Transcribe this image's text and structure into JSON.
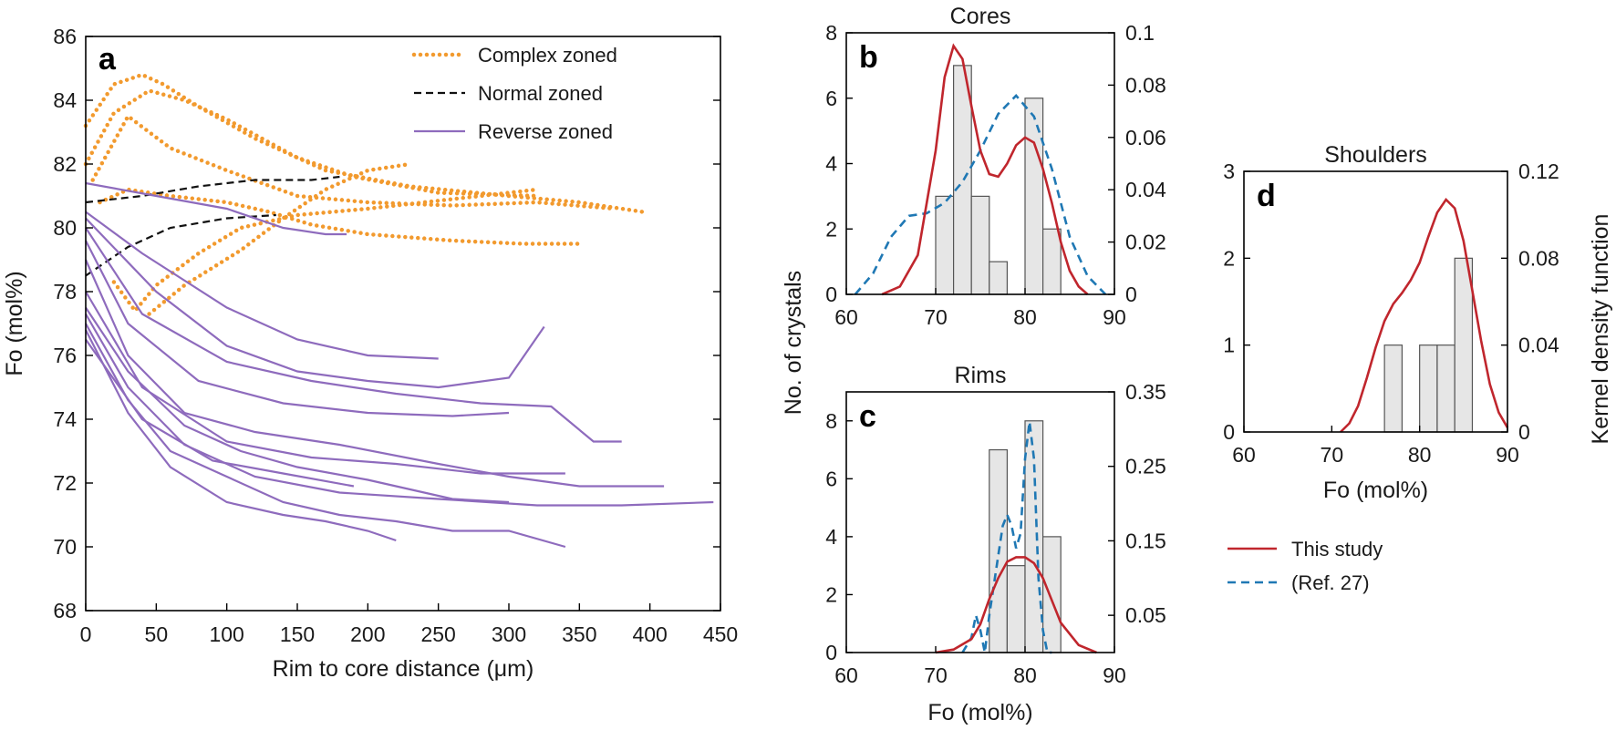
{
  "figure_panels": [
    "a",
    "b",
    "c",
    "d"
  ],
  "legend_a": {
    "complex": "Complex zoned",
    "normal": "Normal zoned",
    "reverse": "Reverse zoned"
  },
  "legend_kde": {
    "this_study": "This study",
    "ref": "(Ref. 27)"
  },
  "colors": {
    "complex": "#f29a2e",
    "normal": "#111111",
    "reverse": "#8e6bbd",
    "this_study": "#c0262d",
    "ref": "#1f78b4",
    "bar_fill": "#e6e6e6",
    "bar_stroke": "#555555"
  },
  "chart_data": [
    {
      "panel": "a",
      "type": "line",
      "title": "",
      "xlabel": "Rim to core distance (μm)",
      "ylabel": "Fo (mol%)",
      "xlim": [
        0,
        450
      ],
      "ylim": [
        68,
        86
      ],
      "xticks": [
        "0",
        "50",
        "100",
        "150",
        "200",
        "250",
        "300",
        "350",
        "400",
        "450"
      ],
      "yticks": [
        "68",
        "70",
        "72",
        "74",
        "76",
        "78",
        "80",
        "82",
        "84",
        "86"
      ],
      "series": [
        {
          "name": "Complex zoned",
          "style": "dotted",
          "x": [
            0,
            20,
            40,
            55,
            80,
            120,
            170,
            230,
            300,
            350,
            395
          ],
          "y": [
            83.2,
            84.5,
            84.8,
            84.5,
            83.8,
            82.8,
            81.8,
            81.3,
            81.0,
            80.8,
            80.5
          ]
        },
        {
          "name": "Complex zoned",
          "style": "dotted",
          "x": [
            0,
            20,
            45,
            70,
            100,
            150,
            190,
            250,
            320
          ],
          "y": [
            82.0,
            83.6,
            84.3,
            84.0,
            83.4,
            82.2,
            81.6,
            81.1,
            81.0
          ]
        },
        {
          "name": "Complex zoned",
          "style": "dotted",
          "x": [
            5,
            30,
            60,
            100,
            150,
            200,
            260,
            320,
            375
          ],
          "y": [
            81.5,
            83.5,
            82.5,
            81.8,
            81.0,
            80.8,
            80.7,
            80.8,
            80.6
          ]
        },
        {
          "name": "Complex zoned",
          "style": "dotted",
          "x": [
            20,
            35,
            50,
            80,
            110,
            150,
            200,
            260,
            320
          ],
          "y": [
            78.3,
            77.4,
            78.2,
            79.2,
            80.0,
            80.4,
            80.6,
            80.9,
            81.2
          ]
        },
        {
          "name": "Complex zoned",
          "style": "dotted",
          "x": [
            10,
            30,
            60,
            100,
            130,
            160,
            200,
            260,
            310,
            350
          ],
          "y": [
            80.8,
            81.2,
            81.0,
            80.8,
            80.5,
            80.1,
            79.8,
            79.6,
            79.5,
            79.5
          ]
        },
        {
          "name": "Complex zoned",
          "style": "dotted",
          "x": [
            45,
            70,
            110,
            140,
            170,
            200,
            230
          ],
          "y": [
            77.3,
            78.2,
            79.3,
            80.3,
            81.2,
            81.8,
            82.0
          ]
        },
        {
          "name": "Normal zoned",
          "style": "dashed",
          "x": [
            0,
            40,
            80,
            120,
            160,
            180
          ],
          "y": [
            80.8,
            81.0,
            81.3,
            81.5,
            81.5,
            81.6
          ]
        },
        {
          "name": "Normal zoned",
          "style": "dashed",
          "x": [
            0,
            30,
            60,
            100,
            135
          ],
          "y": [
            78.5,
            79.4,
            80.0,
            80.3,
            80.4
          ]
        },
        {
          "name": "Reverse zoned",
          "style": "solid",
          "x": [
            0,
            50,
            100,
            140,
            170,
            185
          ],
          "y": [
            81.4,
            81.0,
            80.6,
            80.0,
            79.8,
            79.8
          ]
        },
        {
          "name": "Reverse zoned",
          "style": "solid",
          "x": [
            0,
            40,
            100,
            150,
            200,
            250
          ],
          "y": [
            80.5,
            79.2,
            77.5,
            76.5,
            76.0,
            75.9
          ]
        },
        {
          "name": "Reverse zoned",
          "style": "solid",
          "x": [
            0,
            50,
            100,
            150,
            200,
            250,
            300,
            325
          ],
          "y": [
            80.3,
            78.0,
            76.3,
            75.5,
            75.2,
            75.0,
            75.3,
            76.9
          ]
        },
        {
          "name": "Reverse zoned",
          "style": "solid",
          "x": [
            0,
            40,
            100,
            160,
            220,
            280,
            330,
            360,
            380
          ],
          "y": [
            80.0,
            77.3,
            75.8,
            75.2,
            74.8,
            74.5,
            74.4,
            73.3,
            73.3
          ]
        },
        {
          "name": "Reverse zoned",
          "style": "solid",
          "x": [
            0,
            30,
            80,
            140,
            200,
            260,
            300
          ],
          "y": [
            79.6,
            77.0,
            75.2,
            74.5,
            74.2,
            74.1,
            74.2
          ]
        },
        {
          "name": "Reverse zoned",
          "style": "solid",
          "x": [
            0,
            30,
            70,
            120,
            180,
            250,
            300,
            350,
            410
          ],
          "y": [
            79.0,
            76.0,
            74.2,
            73.6,
            73.2,
            72.6,
            72.2,
            71.9,
            71.9
          ]
        },
        {
          "name": "Reverse zoned",
          "style": "solid",
          "x": [
            0,
            40,
            100,
            160,
            220,
            280,
            340
          ],
          "y": [
            78.0,
            75.0,
            73.3,
            72.8,
            72.6,
            72.3,
            72.3
          ]
        },
        {
          "name": "Reverse zoned",
          "style": "solid",
          "x": [
            0,
            30,
            70,
            110,
            150,
            200,
            260,
            300
          ],
          "y": [
            77.5,
            75.5,
            73.8,
            73.0,
            72.5,
            72.1,
            71.5,
            71.4
          ]
        },
        {
          "name": "Reverse zoned",
          "style": "solid",
          "x": [
            0,
            30,
            70,
            120,
            180,
            250,
            320,
            380,
            445
          ],
          "y": [
            77.3,
            75.0,
            73.2,
            72.2,
            71.7,
            71.5,
            71.3,
            71.3,
            71.4
          ]
        },
        {
          "name": "Reverse zoned",
          "style": "solid",
          "x": [
            0,
            30,
            60,
            100,
            140,
            180,
            220,
            260,
            300,
            340
          ],
          "y": [
            77.0,
            74.6,
            73.0,
            72.2,
            71.4,
            71.0,
            70.8,
            70.5,
            70.5,
            70.0
          ]
        },
        {
          "name": "Reverse zoned",
          "style": "solid",
          "x": [
            0,
            30,
            60,
            100,
            140,
            170,
            200,
            220
          ],
          "y": [
            76.8,
            74.2,
            72.5,
            71.4,
            71.0,
            70.8,
            70.5,
            70.2
          ]
        },
        {
          "name": "Reverse zoned",
          "style": "solid",
          "x": [
            0,
            40,
            90,
            140,
            190
          ],
          "y": [
            76.5,
            74.0,
            72.7,
            72.3,
            71.9
          ]
        }
      ]
    },
    {
      "panel": "b",
      "type": "bar",
      "title": "Cores",
      "xlabel": "",
      "ylabel": "No. of crystals",
      "y2label": "",
      "xlim": [
        60,
        90
      ],
      "ylim": [
        0,
        8
      ],
      "y2lim": [
        0,
        0.1
      ],
      "xticks": [
        "60",
        "70",
        "80",
        "90"
      ],
      "yticks": [
        "0",
        "2",
        "4",
        "6",
        "8"
      ],
      "y2ticks": [
        "0",
        "0.02",
        "0.04",
        "0.06",
        "0.08",
        "0.1"
      ],
      "bin_edges": [
        70,
        72,
        74,
        76,
        78,
        80,
        82,
        84
      ],
      "counts": [
        3,
        7,
        3,
        1,
        0,
        6,
        2
      ],
      "kde_this_study": {
        "x": [
          64,
          66,
          68,
          70,
          71,
          72,
          73,
          74,
          75,
          76,
          77,
          78,
          79,
          80,
          81,
          82,
          83,
          84,
          85,
          86,
          87
        ],
        "y": [
          0.0,
          0.003,
          0.015,
          0.055,
          0.083,
          0.095,
          0.09,
          0.072,
          0.055,
          0.046,
          0.045,
          0.05,
          0.057,
          0.06,
          0.058,
          0.048,
          0.035,
          0.02,
          0.009,
          0.003,
          0.0
        ]
      },
      "kde_ref": {
        "x": [
          61,
          63,
          65,
          67,
          69,
          71,
          73,
          75,
          77,
          79,
          81,
          83,
          85,
          87,
          89
        ],
        "y": [
          0.0,
          0.008,
          0.022,
          0.03,
          0.031,
          0.035,
          0.043,
          0.055,
          0.069,
          0.076,
          0.068,
          0.048,
          0.022,
          0.007,
          0.0
        ]
      }
    },
    {
      "panel": "c",
      "type": "bar",
      "title": "Rims",
      "xlabel": "Fo (mol%)",
      "ylabel": "",
      "y2label": "",
      "xlim": [
        60,
        90
      ],
      "ylim": [
        0,
        9
      ],
      "y2lim": [
        0,
        0.35
      ],
      "xticks": [
        "60",
        "70",
        "80",
        "90"
      ],
      "yticks": [
        "0",
        "2",
        "4",
        "6",
        "8"
      ],
      "y2ticks": [
        "0.05",
        "0.15",
        "0.25",
        "0.35"
      ],
      "bin_edges": [
        76,
        78,
        80,
        82,
        84
      ],
      "counts": [
        7,
        3,
        8,
        4
      ],
      "kde_this_study": {
        "x": [
          70,
          72,
          74,
          75,
          76,
          77,
          78,
          79,
          80,
          81,
          82,
          83,
          84,
          86,
          88
        ],
        "y": [
          0.0,
          0.004,
          0.018,
          0.038,
          0.072,
          0.1,
          0.122,
          0.128,
          0.128,
          0.12,
          0.1,
          0.07,
          0.04,
          0.01,
          0.0
        ]
      },
      "kde_ref": {
        "x": [
          73,
          74,
          74.5,
          75,
          75.5,
          76,
          77,
          77.5,
          78,
          78.5,
          79,
          79.5,
          80,
          80.5,
          81,
          81.5,
          82,
          82.5,
          83
        ],
        "y": [
          0.0,
          0.02,
          0.05,
          0.03,
          0.0,
          0.05,
          0.13,
          0.17,
          0.185,
          0.17,
          0.14,
          0.16,
          0.26,
          0.31,
          0.26,
          0.1,
          0.03,
          0.0,
          0.0
        ]
      }
    },
    {
      "panel": "d",
      "type": "bar",
      "title": "Shoulders",
      "xlabel": "Fo (mol%)",
      "ylabel": "",
      "y2label": "Kernel density function",
      "xlim": [
        60,
        90
      ],
      "ylim": [
        0,
        3
      ],
      "y2lim": [
        0,
        0.12
      ],
      "xticks": [
        "60",
        "70",
        "80",
        "90"
      ],
      "yticks": [
        "0",
        "1",
        "2",
        "3"
      ],
      "y2ticks": [
        "0",
        "0.04",
        "0.08",
        "0.12"
      ],
      "bin_edges": [
        76,
        78,
        80,
        82,
        84,
        86
      ],
      "counts": [
        1,
        0,
        1,
        1,
        2
      ],
      "kde_this_study": {
        "x": [
          71,
          72,
          73,
          74,
          75,
          76,
          77,
          78,
          79,
          80,
          81,
          82,
          83,
          84,
          85,
          86,
          87,
          88,
          89,
          90
        ],
        "y": [
          0.0,
          0.004,
          0.012,
          0.025,
          0.039,
          0.051,
          0.059,
          0.064,
          0.07,
          0.078,
          0.09,
          0.101,
          0.107,
          0.103,
          0.088,
          0.065,
          0.042,
          0.022,
          0.009,
          0.002
        ]
      }
    }
  ]
}
